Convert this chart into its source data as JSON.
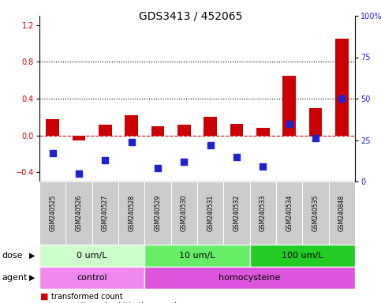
{
  "title": "GDS3413 / 452065",
  "samples": [
    "GSM240525",
    "GSM240526",
    "GSM240527",
    "GSM240528",
    "GSM240529",
    "GSM240530",
    "GSM240531",
    "GSM240532",
    "GSM240533",
    "GSM240534",
    "GSM240535",
    "GSM240848"
  ],
  "transformed_count": [
    0.18,
    -0.05,
    0.12,
    0.22,
    0.1,
    0.12,
    0.2,
    0.13,
    0.08,
    0.65,
    0.3,
    1.05
  ],
  "percentile_rank_raw": [
    17,
    5,
    13,
    24,
    8,
    12,
    22,
    15,
    9,
    35,
    26,
    50
  ],
  "ylim_left": [
    -0.5,
    1.3
  ],
  "ylim_right": [
    0,
    100
  ],
  "yticks_left": [
    -0.4,
    0.0,
    0.4,
    0.8,
    1.2
  ],
  "yticks_right": [
    0,
    25,
    50,
    75,
    100
  ],
  "dotted_lines": [
    0.4,
    0.8
  ],
  "dose_groups": [
    {
      "label": "0 um/L",
      "start": 0,
      "end": 4,
      "color": "#ccffcc"
    },
    {
      "label": "10 um/L",
      "start": 4,
      "end": 8,
      "color": "#66ee66"
    },
    {
      "label": "100 um/L",
      "start": 8,
      "end": 12,
      "color": "#22cc22"
    }
  ],
  "agent_groups": [
    {
      "label": "control",
      "start": 0,
      "end": 4,
      "color": "#ee88ee"
    },
    {
      "label": "homocysteine",
      "start": 4,
      "end": 12,
      "color": "#dd55dd"
    }
  ],
  "bar_color": "#cc0000",
  "marker_color": "#2222cc",
  "title_fontsize": 10,
  "tick_fontsize": 7,
  "sample_fontsize": 5.5,
  "row_fontsize": 8,
  "legend_fontsize": 7,
  "background_color": "#ffffff",
  "left_axis_color": "#cc0000",
  "right_axis_color": "#2222cc",
  "sample_box_color": "#cccccc",
  "bar_width": 0.5
}
